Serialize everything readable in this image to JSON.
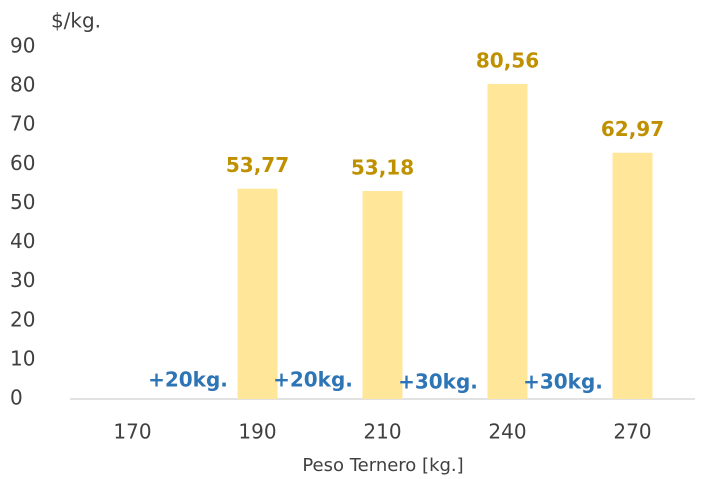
{
  "chart_data": {
    "type": "bar",
    "y_axis_label": "$/kg.",
    "x_axis_label": "Peso Ternero [kg.]",
    "categories": [
      "170",
      "190",
      "210",
      "240",
      "270"
    ],
    "values": [
      null,
      53.77,
      53.18,
      80.56,
      62.97
    ],
    "value_labels": [
      null,
      "53,77",
      "53,18",
      "80,56",
      "62,97"
    ],
    "color": "#ffe699",
    "annotations": [
      "+20kg.",
      "+20kg.",
      "+30kg.",
      "+30kg."
    ],
    "ylim": [
      0,
      90
    ],
    "yticks": [
      0,
      10,
      20,
      30,
      40,
      50,
      60,
      70,
      80,
      90
    ],
    "grid": false
  }
}
